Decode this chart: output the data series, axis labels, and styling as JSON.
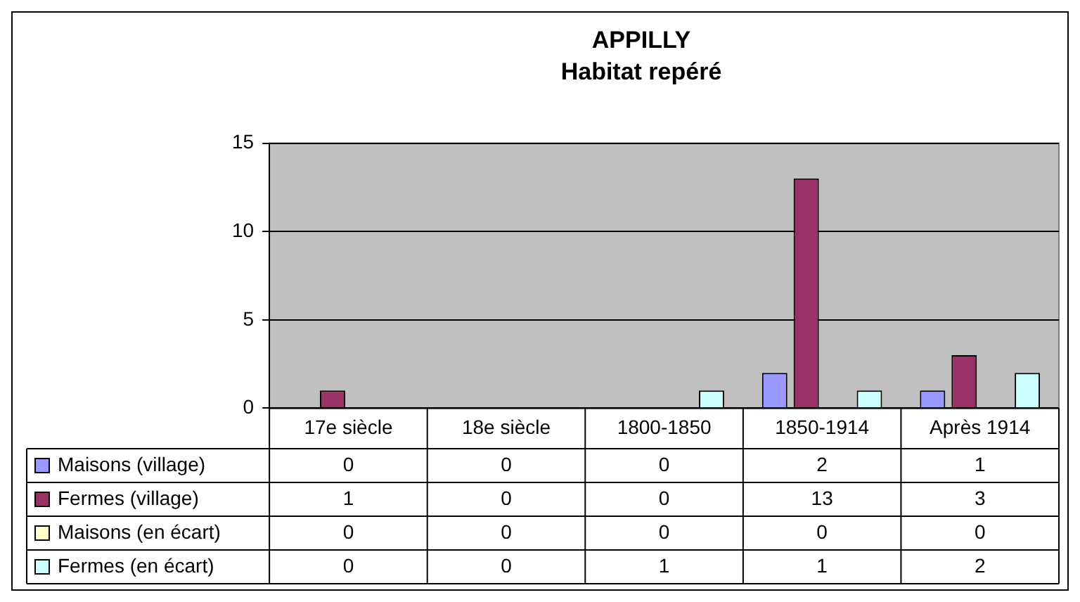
{
  "chart_data": {
    "type": "bar",
    "title": "APPILLY",
    "subtitle": "Habitat repéré",
    "categories": [
      "17e siècle",
      "18e siècle",
      "1800-1850",
      "1850-1914",
      "Après 1914"
    ],
    "series": [
      {
        "name": "Maisons (village)",
        "color": "#9999ff",
        "values": [
          0,
          0,
          0,
          2,
          1
        ]
      },
      {
        "name": "Fermes (village)",
        "color": "#993366",
        "values": [
          1,
          0,
          0,
          13,
          3
        ]
      },
      {
        "name": "Maisons (en écart)",
        "color": "#ffffcc",
        "values": [
          0,
          0,
          0,
          0,
          0
        ]
      },
      {
        "name": "Fermes (en écart)",
        "color": "#ccffff",
        "values": [
          0,
          0,
          1,
          1,
          2
        ]
      }
    ],
    "ylim": [
      0,
      15
    ],
    "yticks": [
      0,
      5,
      10,
      15
    ],
    "grid": "y",
    "legend": "bottom",
    "data_labels": true
  }
}
